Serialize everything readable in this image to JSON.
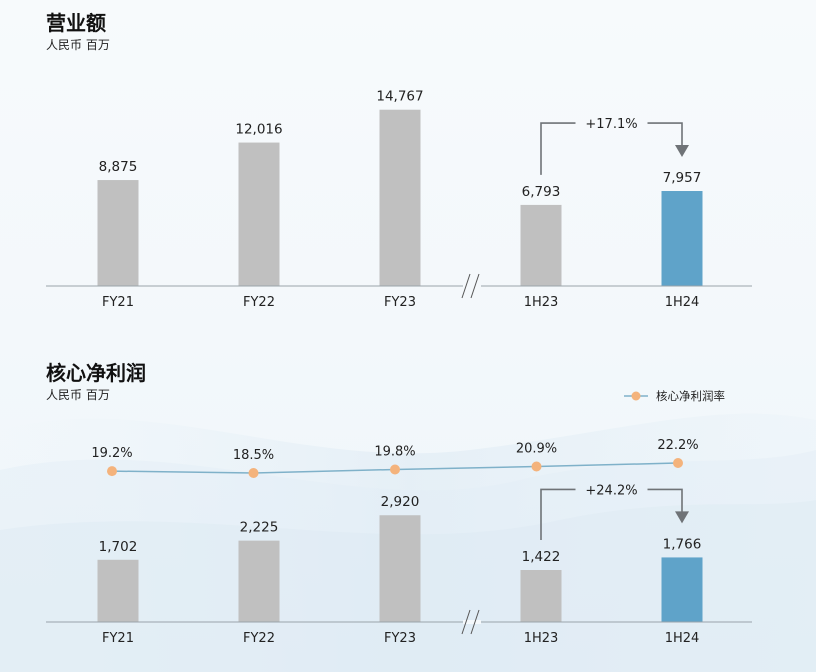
{
  "chart_data": [
    {
      "type": "bar",
      "title": "营业额",
      "subtitle": "人民币 百万",
      "categories": [
        "FY21",
        "FY22",
        "FY23",
        "1H23",
        "1H24"
      ],
      "values": [
        8875,
        12016,
        14767,
        6793,
        7957
      ],
      "value_labels": [
        "8,875",
        "12,016",
        "14,767",
        "6,793",
        "7,957"
      ],
      "growth_annotation": {
        "from": "1H23",
        "to": "1H24",
        "label": "+17.1%"
      },
      "axis_break_after": "FY23",
      "ylim": [
        0,
        16000
      ],
      "colors": {
        "default": "#c0c0c0",
        "highlight": "#5fa3c9",
        "arrow": "#6f7377",
        "axis": "#9aa3aa"
      },
      "highlight_category": "1H24"
    },
    {
      "type": "bar",
      "title": "核心净利润",
      "subtitle": "人民币 百万",
      "categories": [
        "FY21",
        "FY22",
        "FY23",
        "1H23",
        "1H24"
      ],
      "values": [
        1702,
        2225,
        2920,
        1422,
        1766
      ],
      "value_labels": [
        "1,702",
        "2,225",
        "2,920",
        "1,422",
        "1,766"
      ],
      "growth_annotation": {
        "from": "1H23",
        "to": "1H24",
        "label": "+24.2%"
      },
      "axis_break_after": "FY23",
      "ylim": [
        0,
        3200
      ],
      "colors": {
        "default": "#c0c0c0",
        "highlight": "#5fa3c9",
        "arrow": "#6f7377",
        "axis": "#9aa3aa",
        "line": "#7fb1c9",
        "marker": "#f4b37c"
      },
      "highlight_category": "1H24",
      "line_series": {
        "name": "核心净利润率",
        "values": [
          19.2,
          18.5,
          19.8,
          20.9,
          22.2
        ],
        "labels": [
          "19.2%",
          "18.5%",
          "19.8%",
          "20.9%",
          "22.2%"
        ],
        "unit": "%"
      },
      "legend_position": "top-right"
    }
  ]
}
